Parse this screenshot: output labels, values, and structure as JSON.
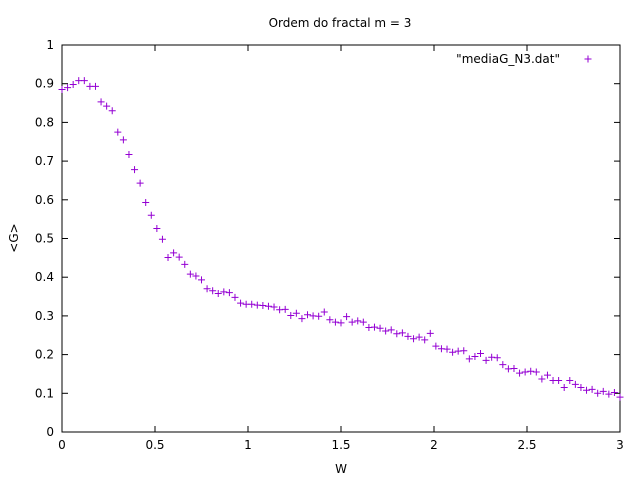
{
  "chart_data": {
    "type": "scatter",
    "title": "Ordem do fractal m = 3",
    "xlabel": "W",
    "ylabel": "<G>",
    "xlim": [
      0,
      3
    ],
    "ylim": [
      0,
      1
    ],
    "xticks": [
      "0",
      "0.5",
      "1",
      "1.5",
      "2",
      "2.5",
      "3"
    ],
    "yticks": [
      "0",
      "0.1",
      "0.2",
      "0.3",
      "0.4",
      "0.5",
      "0.6",
      "0.7",
      "0.8",
      "0.9",
      "1"
    ],
    "grid": false,
    "legend_position": "top-right",
    "series": [
      {
        "name": "\"mediaG_N3.dat\"",
        "color": "#9400d3",
        "marker": "plus",
        "x": [
          0.0,
          0.03,
          0.06,
          0.09,
          0.12,
          0.15,
          0.18,
          0.21,
          0.24,
          0.27,
          0.3,
          0.33,
          0.36,
          0.39,
          0.42,
          0.45,
          0.48,
          0.51,
          0.54,
          0.57,
          0.6,
          0.63,
          0.66,
          0.69,
          0.72,
          0.75,
          0.78,
          0.81,
          0.84,
          0.87,
          0.9,
          0.93,
          0.96,
          0.99,
          1.02,
          1.05,
          1.08,
          1.11,
          1.14,
          1.17,
          1.2,
          1.23,
          1.26,
          1.29,
          1.32,
          1.35,
          1.38,
          1.41,
          1.44,
          1.47,
          1.5,
          1.53,
          1.56,
          1.59,
          1.62,
          1.65,
          1.68,
          1.71,
          1.74,
          1.77,
          1.8,
          1.83,
          1.86,
          1.89,
          1.92,
          1.95,
          1.98,
          2.01,
          2.04,
          2.07,
          2.1,
          2.13,
          2.16,
          2.19,
          2.22,
          2.25,
          2.28,
          2.31,
          2.34,
          2.37,
          2.4,
          2.43,
          2.46,
          2.49,
          2.52,
          2.55,
          2.58,
          2.61,
          2.64,
          2.67,
          2.7,
          2.73,
          2.76,
          2.79,
          2.82,
          2.85,
          2.88,
          2.91,
          2.94,
          2.97,
          3.0
        ],
        "y": [
          0.885,
          0.89,
          0.898,
          0.908,
          0.908,
          0.893,
          0.893,
          0.853,
          0.842,
          0.83,
          0.775,
          0.755,
          0.717,
          0.678,
          0.643,
          0.593,
          0.56,
          0.526,
          0.498,
          0.451,
          0.463,
          0.452,
          0.433,
          0.408,
          0.403,
          0.393,
          0.37,
          0.365,
          0.358,
          0.362,
          0.36,
          0.348,
          0.333,
          0.33,
          0.33,
          0.328,
          0.327,
          0.325,
          0.323,
          0.316,
          0.317,
          0.301,
          0.307,
          0.293,
          0.303,
          0.3,
          0.299,
          0.31,
          0.29,
          0.284,
          0.282,
          0.298,
          0.284,
          0.287,
          0.284,
          0.27,
          0.271,
          0.268,
          0.261,
          0.264,
          0.254,
          0.256,
          0.247,
          0.241,
          0.245,
          0.238,
          0.255,
          0.222,
          0.215,
          0.214,
          0.206,
          0.209,
          0.21,
          0.189,
          0.195,
          0.203,
          0.185,
          0.193,
          0.192,
          0.174,
          0.163,
          0.164,
          0.152,
          0.155,
          0.157,
          0.155,
          0.137,
          0.147,
          0.133,
          0.133,
          0.115,
          0.133,
          0.123,
          0.115,
          0.108,
          0.11,
          0.1,
          0.105,
          0.098,
          0.102,
          0.09
        ]
      }
    ]
  }
}
